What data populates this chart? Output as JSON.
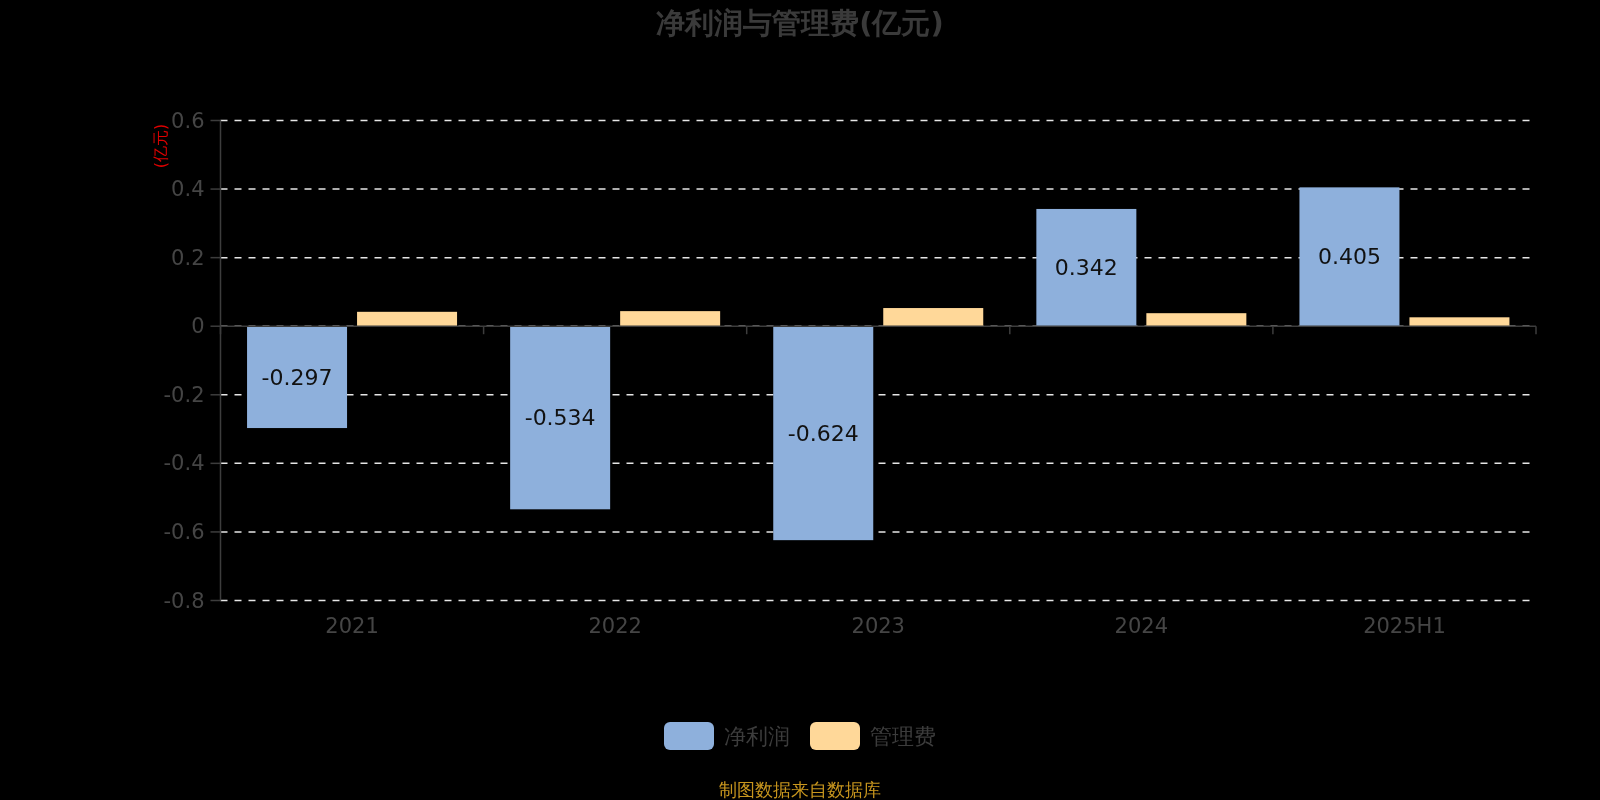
{
  "chart_data": {
    "type": "bar",
    "title": "净利润与管理费(亿元)",
    "ylabel": "(亿元)",
    "categories": [
      "2021",
      "2022",
      "2023",
      "2024",
      "2025H1"
    ],
    "series": [
      {
        "name": "净利润",
        "color": "#8eb0dc",
        "values": [
          -0.297,
          -0.534,
          -0.624,
          0.342,
          0.405
        ],
        "value_labels": [
          "-0.297",
          "-0.534",
          "-0.624",
          "0.342",
          "0.405"
        ]
      },
      {
        "name": "管理费",
        "color": "#ffd899",
        "values": [
          0.042,
          0.044,
          0.053,
          0.038,
          0.026
        ]
      }
    ],
    "ylim": [
      -0.8,
      0.6
    ],
    "yticks": [
      -0.8,
      -0.6,
      -0.4,
      -0.2,
      0,
      0.2,
      0.4,
      0.6
    ],
    "grid": "y",
    "legend": "bottom",
    "annotations": [
      "制图数据来自数据库"
    ]
  }
}
